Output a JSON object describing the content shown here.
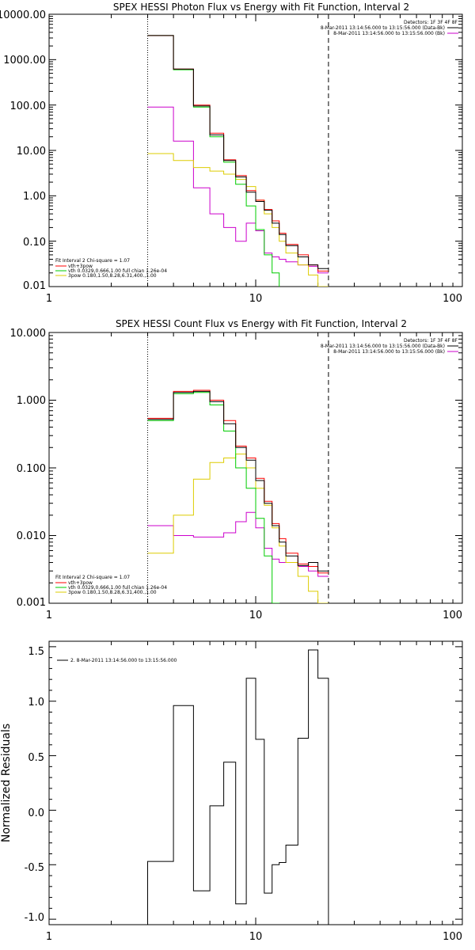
{
  "charts": {
    "photon": {
      "title": "SPEX HESSI Photon Flux vs Energy with Fit Function, Interval 2",
      "detectors": "Detectors: 1F 3F 4F 8F",
      "legend_right": [
        {
          "text": "8-Mar-2011 13:14:56.000 to 13:15:56.000 (Data-Bk)",
          "color": "#000000"
        },
        {
          "text": "8-Mar-2011 13:14:56.000 to 13:15:56.000 (Bk)",
          "color": "#cc00cc"
        }
      ],
      "legend_left": [
        {
          "text": "Fit Interval  2   Chi-square = 1.07",
          "color": "#000000"
        },
        {
          "text": "vth+3pow",
          "color": "#ff0000"
        },
        {
          "text": "vth 0.0329,0.666,1.00  full chian 1.26e-04",
          "color": "#00cc00"
        },
        {
          "text": "3pow 0.180,1.50,8.28,6.31,400.,1.00",
          "color": "#ddcc00"
        }
      ],
      "yticks": [
        "10000.00",
        "1000.00",
        "100.00",
        "10.00",
        "1.00",
        "0.10",
        "0.01"
      ],
      "xticks": [
        "1",
        "10",
        "100"
      ]
    },
    "count": {
      "title": "SPEX HESSI Count Flux vs Energy with Fit Function, Interval 2",
      "detectors": "Detectors: 1F 3F 4F 8F",
      "legend_right": [
        {
          "text": "8-Mar-2011 13:14:56.000 to 13:15:56.000 (Data-Bk)",
          "color": "#000000"
        },
        {
          "text": "8-Mar-2011 13:14:56.000 to 13:15:56.000 (Bk)",
          "color": "#cc00cc"
        }
      ],
      "legend_left": [
        {
          "text": "Fit Interval  2   Chi-square = 1.07",
          "color": "#000000"
        },
        {
          "text": "vth+3pow",
          "color": "#ff0000"
        },
        {
          "text": "vth 0.0329,0.666,1.00  full chian 1.26e-04",
          "color": "#00cc00"
        },
        {
          "text": "3pow 0.180,1.50,8.28,6.31,400.,1.00",
          "color": "#ddcc00"
        }
      ],
      "yticks": [
        "10.000",
        "1.000",
        "0.100",
        "0.010",
        "0.001"
      ],
      "xticks": [
        "1",
        "10",
        "100"
      ]
    },
    "resid": {
      "ylabel": "Normalized Residuals",
      "legend": "2.  8-Mar-2011 13:14:56.000 to 13:15:56.000",
      "yticks": [
        "1.5",
        "1.0",
        "0.5",
        "0.0",
        "-0.5",
        "-1.0"
      ],
      "xticks": [
        "1",
        "10",
        "100"
      ]
    }
  },
  "chart_data": [
    {
      "type": "line",
      "title": "SPEX HESSI Photon Flux vs Energy with Fit Function, Interval 2",
      "xscale": "log",
      "yscale": "log",
      "xlim": [
        1,
        100
      ],
      "ylim": [
        0.01,
        10000
      ],
      "vlines": [
        {
          "x": 3.0,
          "style": "dotted"
        },
        {
          "x": 22.5,
          "style": "dashed"
        }
      ],
      "bin_edges": [
        3.0,
        4.0,
        5.0,
        6.0,
        7.0,
        8.0,
        9.0,
        10.0,
        11.0,
        12.0,
        13.0,
        14.0,
        16.0,
        18.0,
        20.0,
        22.5
      ],
      "series": [
        {
          "name": "8-Mar-2011 13:14:56.000 to 13:15:56.000 (Data-Bk)",
          "color": "#000000",
          "values": [
            3400,
            620,
            95,
            22,
            6.0,
            2.6,
            1.2,
            0.75,
            0.48,
            0.25,
            0.14,
            0.08,
            0.045,
            0.03,
            0.025
          ]
        },
        {
          "name": "vth+3pow",
          "color": "#ff0000",
          "values": [
            3400,
            620,
            100,
            24,
            6.2,
            2.8,
            1.3,
            0.8,
            0.5,
            0.28,
            0.15,
            0.085,
            0.05,
            0.03,
            0.022
          ]
        },
        {
          "name": "vth",
          "color": "#00cc00",
          "values": [
            3400,
            600,
            90,
            20,
            5.5,
            1.8,
            0.6,
            0.18,
            0.05,
            0.02,
            0.0,
            0.0,
            0.0,
            0.0,
            0.0
          ]
        },
        {
          "name": "3pow",
          "color": "#ddcc00",
          "values": [
            8.5,
            6.0,
            4.2,
            3.5,
            3.0,
            2.3,
            1.6,
            0.8,
            0.4,
            0.2,
            0.1,
            0.055,
            0.03,
            0.018,
            0.01
          ]
        },
        {
          "name": "8-Mar-2011 13:14:56.000 to 13:15:56.000 (Bk)",
          "color": "#cc00cc",
          "values": [
            90,
            16,
            1.5,
            0.4,
            0.2,
            0.1,
            0.25,
            0.17,
            0.055,
            0.045,
            0.04,
            0.035,
            0.03,
            0.028,
            0.02
          ]
        }
      ]
    },
    {
      "type": "line",
      "title": "SPEX HESSI Count Flux vs Energy with Fit Function, Interval 2",
      "xscale": "log",
      "yscale": "log",
      "xlim": [
        1,
        100
      ],
      "ylim": [
        0.001,
        10
      ],
      "vlines": [
        {
          "x": 3.0,
          "style": "dotted"
        },
        {
          "x": 22.5,
          "style": "dashed"
        }
      ],
      "bin_edges": [
        3.0,
        4.0,
        5.0,
        6.0,
        7.0,
        8.0,
        9.0,
        10.0,
        11.0,
        12.0,
        13.0,
        14.0,
        16.0,
        18.0,
        20.0,
        22.5
      ],
      "series": [
        {
          "name": "8-Mar-2011 13:14:56.000 to 13:15:56.000 (Data-Bk)",
          "color": "#000000",
          "values": [
            0.52,
            1.3,
            1.35,
            0.95,
            0.45,
            0.2,
            0.13,
            0.065,
            0.03,
            0.014,
            0.008,
            0.005,
            0.0036,
            0.004,
            0.003
          ]
        },
        {
          "name": "vth+3pow",
          "color": "#ff0000",
          "values": [
            0.54,
            1.35,
            1.4,
            1.0,
            0.5,
            0.21,
            0.14,
            0.07,
            0.032,
            0.015,
            0.009,
            0.0055,
            0.0038,
            0.0035,
            0.0028
          ]
        },
        {
          "name": "vth",
          "color": "#00cc00",
          "values": [
            0.5,
            1.25,
            1.3,
            0.85,
            0.35,
            0.1,
            0.05,
            0.018,
            0.005,
            0.001,
            0.0,
            0.0,
            0.0,
            0.0,
            0.0
          ]
        },
        {
          "name": "3pow",
          "color": "#ddcc00",
          "values": [
            0.0055,
            0.02,
            0.068,
            0.12,
            0.14,
            0.16,
            0.1,
            0.05,
            0.028,
            0.013,
            0.007,
            0.004,
            0.0025,
            0.0015,
            0.001
          ]
        },
        {
          "name": "8-Mar-2011 13:14:56.000 to 13:15:56.000 (Bk)",
          "color": "#cc00cc",
          "values": [
            0.014,
            0.01,
            0.0095,
            0.0095,
            0.011,
            0.016,
            0.022,
            0.013,
            0.0065,
            0.0045,
            0.004,
            0.004,
            0.0035,
            0.003,
            0.0025
          ]
        }
      ]
    },
    {
      "type": "line",
      "ylabel": "Normalized Residuals",
      "xscale": "log",
      "xlim": [
        1,
        100
      ],
      "ylim": [
        -1.05,
        1.55
      ],
      "bin_edges": [
        3.0,
        4.0,
        5.0,
        6.0,
        7.0,
        8.0,
        9.0,
        10.0,
        11.0,
        12.0,
        13.0,
        14.0,
        16.0,
        18.0,
        20.0,
        22.5
      ],
      "series": [
        {
          "name": "2.  8-Mar-2011 13:14:56.000 to 13:15:56.000",
          "color": "#000000",
          "values": [
            -0.47,
            0.96,
            -0.74,
            0.04,
            0.44,
            -0.86,
            1.21,
            0.65,
            -0.76,
            -0.5,
            -0.48,
            -0.32,
            0.66,
            1.47,
            1.21
          ]
        }
      ]
    }
  ]
}
